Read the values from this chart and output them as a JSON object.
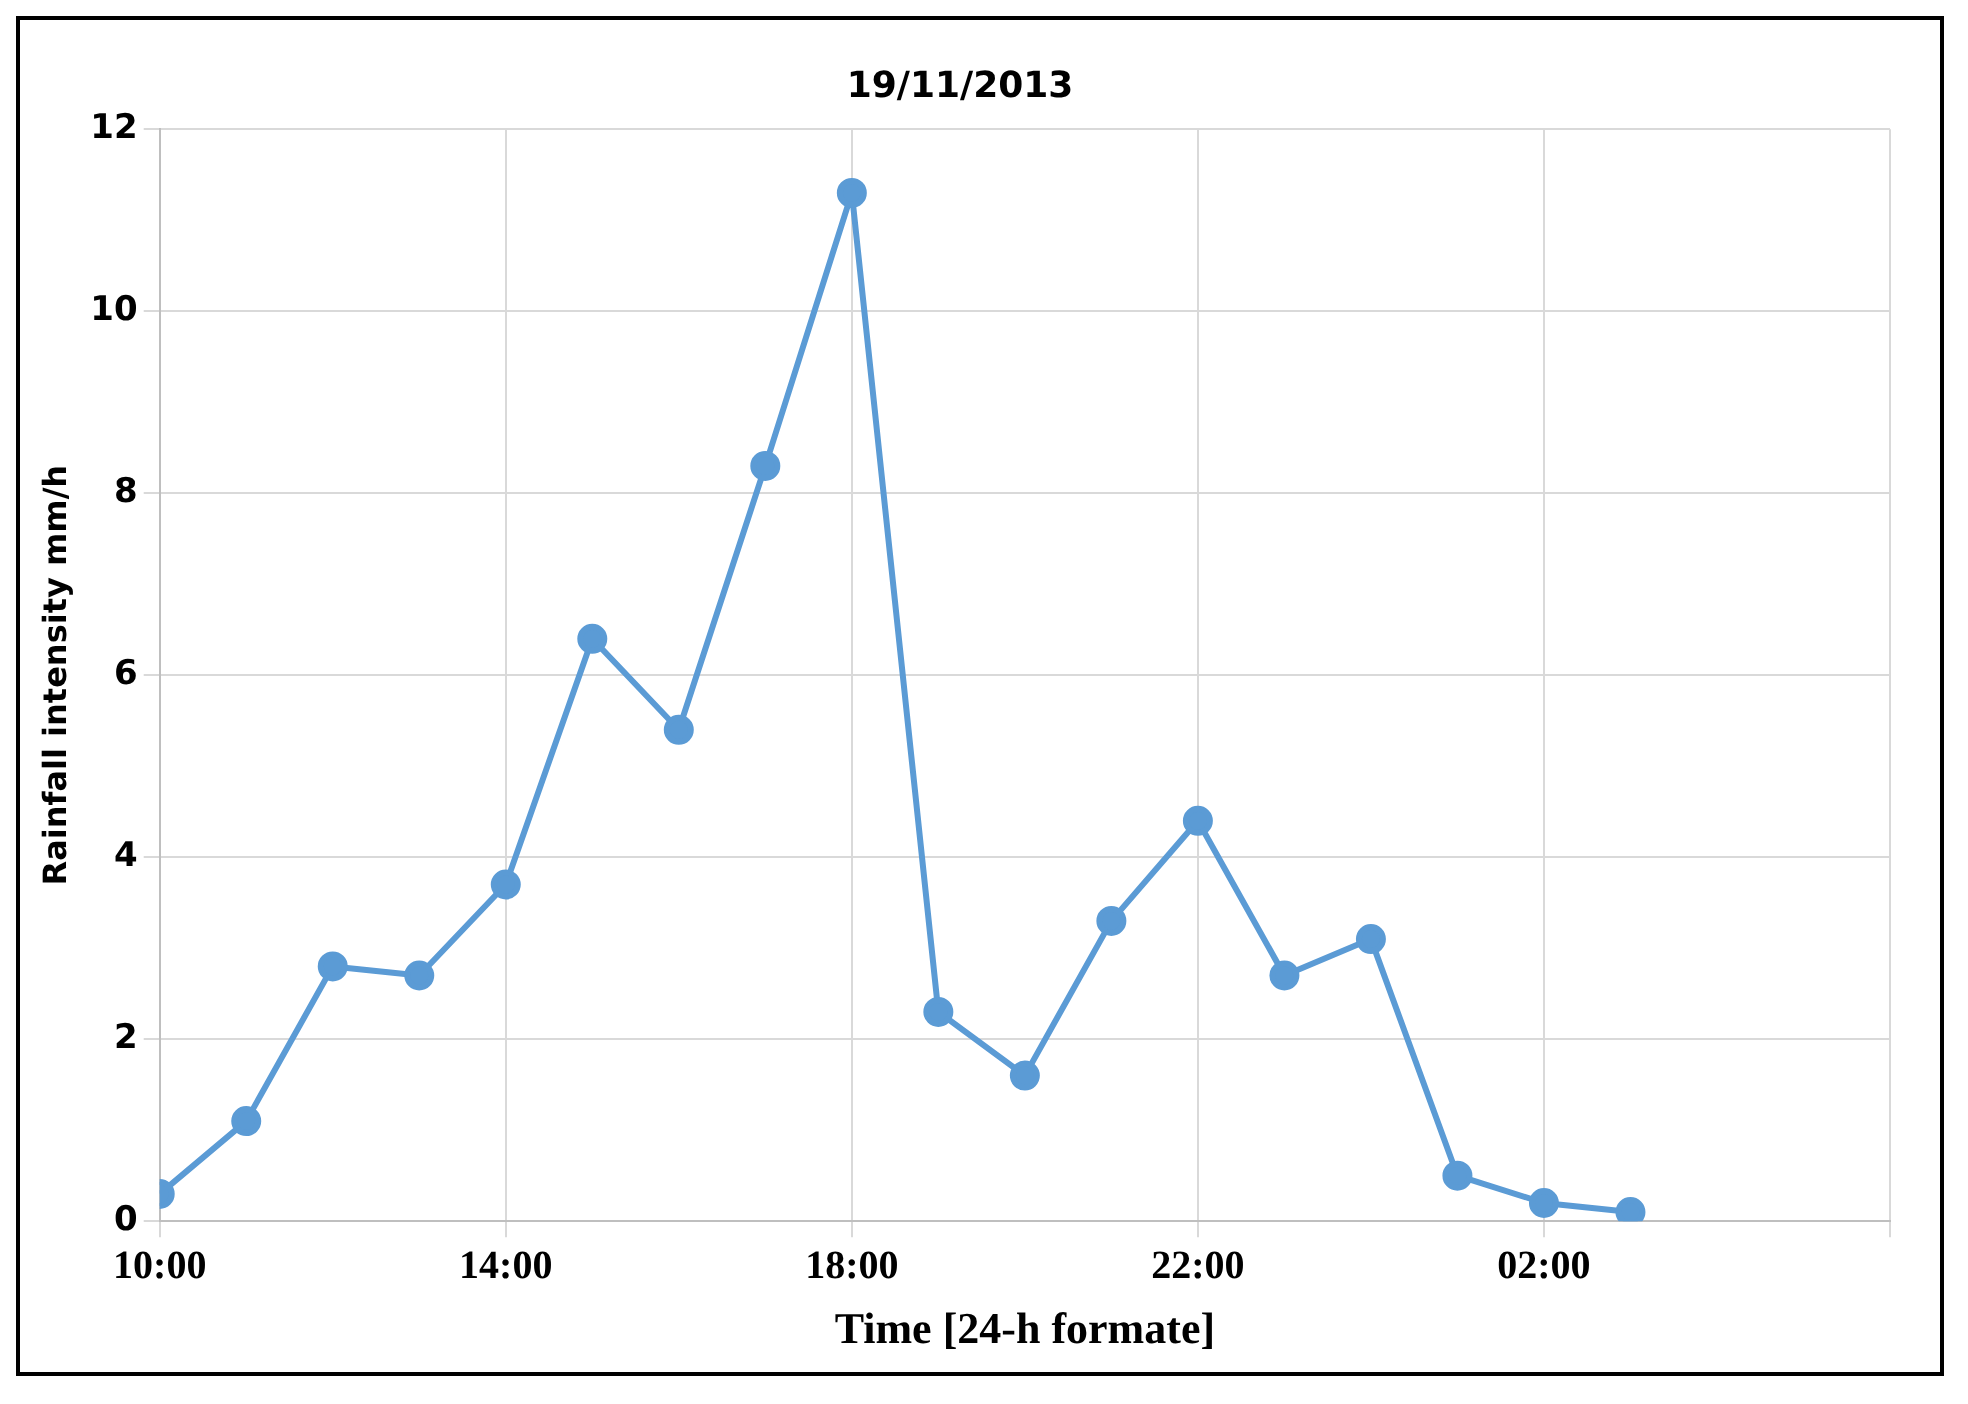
{
  "chart_data": {
    "type": "line",
    "title": "19/11/2013",
    "xlabel": "Time [24-h formate]",
    "ylabel": "Rainfall intensity mm/h",
    "x": [
      "2013-11-19T10:00",
      "2013-11-19T11:00",
      "2013-11-19T12:00",
      "2013-11-19T13:00",
      "2013-11-19T14:00",
      "2013-11-19T15:00",
      "2013-11-19T16:00",
      "2013-11-19T17:00",
      "2013-11-19T18:00",
      "2013-11-19T19:00",
      "2013-11-19T20:00",
      "2013-11-19T21:00",
      "2013-11-19T22:00",
      "2013-11-19T23:00",
      "2013-11-20T00:00",
      "2013-11-20T01:00",
      "2013-11-20T02:00",
      "2013-11-20T03:00"
    ],
    "series": [
      {
        "color": "#5b9bd5",
        "values": [
          0.3,
          1.1,
          2.8,
          2.7,
          3.7,
          6.4,
          5.4,
          8.3,
          11.3,
          2.3,
          1.6,
          3.3,
          4.4,
          2.7,
          3.1,
          0.5,
          0.2,
          0.1
        ]
      }
    ],
    "xlim": [
      "2013-11-19T10:00",
      "2013-11-20T06:00"
    ],
    "xticks": [
      {
        "value": "2013-11-19T10:00",
        "label": "10:00"
      },
      {
        "value": "2013-11-19T14:00",
        "label": "14:00"
      },
      {
        "value": "2013-11-19T18:00",
        "label": "18:00"
      },
      {
        "value": "2013-11-19T22:00",
        "label": "22:00"
      },
      {
        "value": "2013-11-20T02:00",
        "label": "02:00"
      },
      {
        "value": "2013-11-20T06:00",
        "label": null
      }
    ],
    "ylim": [
      0,
      12
    ],
    "yticks": [
      0,
      2,
      4,
      6,
      8,
      10,
      12
    ],
    "grid": true,
    "legend": false,
    "marker": "circle",
    "line_style": "solid"
  }
}
